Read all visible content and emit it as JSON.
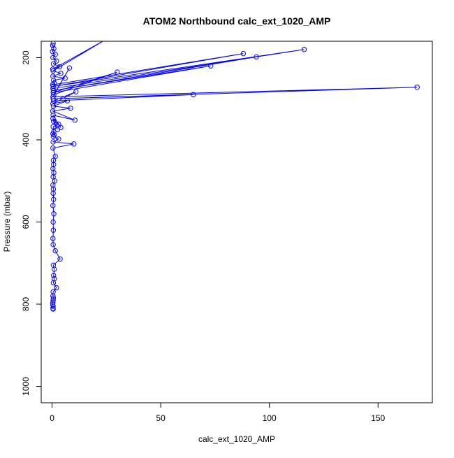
{
  "chart_data": {
    "type": "line",
    "title": "ATOM2 Northbound calc_ext_1020_AMP",
    "xlabel": "calc_ext_1020_AMP",
    "ylabel": "Pressure (mbar)",
    "xlim": [
      -5,
      175
    ],
    "ylim": [
      1040,
      160
    ],
    "y_reversed": true,
    "grid": false,
    "x_ticks": [
      0,
      50,
      100,
      150
    ],
    "y_ticks": [
      200,
      400,
      600,
      800,
      1000
    ],
    "series_color": "#0000ff",
    "marker": "open-circle",
    "series": [
      {
        "x": [
          0.5,
          0.3,
          0.8,
          0.2,
          1.5,
          0.4,
          2.0,
          0.6,
          3.5,
          0.3,
          25,
          0.5,
          4.0,
          0.4,
          6.0,
          0.7,
          1.0,
          0.3,
          88,
          0.5,
          116,
          0.4,
          94,
          0.6,
          73,
          0.5,
          30,
          0.8,
          8.0,
          0.4,
          168,
          0.5,
          65,
          0.7,
          11,
          0.4,
          7.0,
          0.6,
          8.5,
          0.3,
          10.5,
          0.5,
          4.0,
          0.4,
          2.5,
          0.7,
          3.0,
          0.5,
          0.8,
          0.4,
          1.0,
          0.6,
          3.0,
          0.5,
          10,
          0.4,
          1.5,
          0.6,
          0.7,
          0.4,
          0.8,
          0.5,
          1.2,
          0.4,
          0.6,
          0.5,
          0.7,
          0.4,
          0.8,
          0.5,
          0.6,
          0.4,
          0.5,
          1.5,
          3.7,
          0.6,
          1.0,
          0.7,
          1.0,
          0.6,
          2.0,
          0.5,
          0.4,
          0.6,
          0.5,
          0.4,
          0.3,
          0.5,
          0.4,
          0.5
        ],
        "y": [
          165,
          170,
          178,
          185,
          192,
          200,
          208,
          215,
          222,
          228,
          155,
          232,
          238,
          245,
          250,
          255,
          262,
          266,
          190,
          270,
          180,
          275,
          198,
          280,
          220,
          285,
          235,
          290,
          225,
          295,
          272,
          300,
          290,
          305,
          283,
          312,
          305,
          318,
          323,
          330,
          352,
          340,
          370,
          348,
          375,
          355,
          362,
          368,
          380,
          385,
          388,
          392,
          398,
          405,
          410,
          420,
          440,
          450,
          460,
          470,
          480,
          490,
          500,
          510,
          520,
          530,
          545,
          560,
          580,
          600,
          620,
          640,
          655,
          670,
          690,
          705,
          715,
          730,
          738,
          748,
          760,
          770,
          780,
          785,
          790,
          795,
          800,
          805,
          810,
          812
        ]
      }
    ]
  }
}
